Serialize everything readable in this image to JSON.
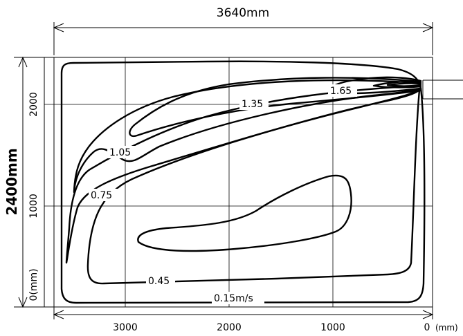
{
  "dimensions": {
    "width_label": "3640mm",
    "height_label": "2400mm"
  },
  "x_axis": {
    "ticks": [
      "3000",
      "2000",
      "1000",
      "0"
    ],
    "unit": "(mm)"
  },
  "y_axis": {
    "ticks": [
      "2000",
      "1000",
      "0(mm)"
    ]
  },
  "contour_labels": [
    "1.65",
    "1.35",
    "1.05",
    "0.75",
    "0.45",
    "0.15m/s"
  ]
}
